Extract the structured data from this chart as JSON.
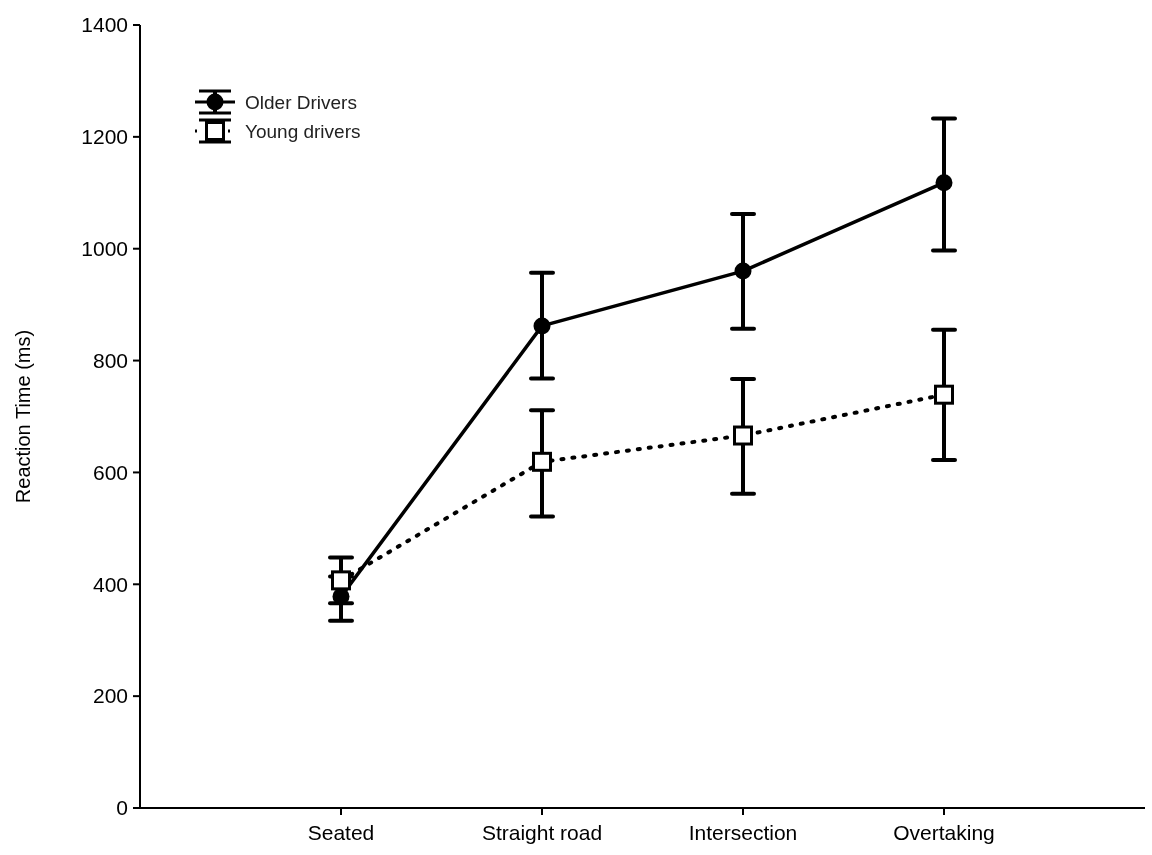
{
  "chart_data": {
    "type": "line",
    "ylabel": "Reaction Time (ms)",
    "categories": [
      "Seated",
      "Straight road",
      "Intersection",
      "Overtaking"
    ],
    "series": [
      {
        "name": "Older Drivers",
        "color": "#000000",
        "marker": "circle",
        "line_style": "solid",
        "values": [
          378,
          862,
          960,
          1118
        ],
        "errors": [
          [
            335,
            414
          ],
          [
            768,
            957
          ],
          [
            857,
            1062
          ],
          [
            997,
            1233
          ]
        ]
      },
      {
        "name": "Young drivers",
        "color": "#000000",
        "marker": "square",
        "line_style": "dotted",
        "values": [
          407,
          619,
          666,
          739
        ],
        "errors": [
          [
            366,
            448
          ],
          [
            521,
            711
          ],
          [
            562,
            767
          ],
          [
            622,
            855
          ]
        ]
      }
    ],
    "ylim": [
      0,
      1400
    ],
    "yticks": [
      0,
      200,
      400,
      600,
      800,
      1000,
      1200,
      1400
    ],
    "grid": false,
    "legend": "top left"
  }
}
